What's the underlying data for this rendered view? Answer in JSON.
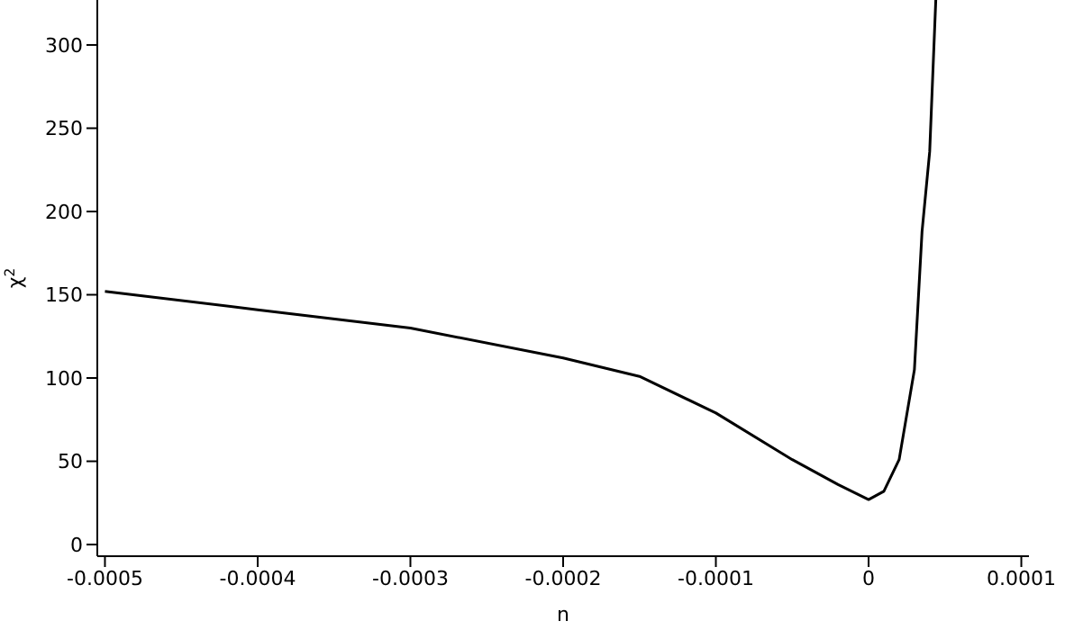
{
  "chart_data": {
    "type": "line",
    "xlabel": "n",
    "ylabel": "χ$^{2}$",
    "xlim": [
      -0.000505,
      0.000105
    ],
    "ylim": [
      -7,
      327
    ],
    "xticks": [
      -0.0005,
      -0.0004,
      -0.0003,
      -0.0002,
      -0.0001,
      0,
      0.0001
    ],
    "yticks": [
      0,
      50,
      100,
      150,
      200,
      250,
      300
    ],
    "grid": false,
    "legend": false,
    "marker": "none",
    "line_style": "solid",
    "series": [
      {
        "color": "#000000",
        "x": [
          -0.0005,
          -0.0004,
          -0.0003,
          -0.0002,
          -0.00015,
          -0.0001,
          -5e-05,
          -2e-05,
          0,
          1e-05,
          2e-05,
          3e-05,
          3.5e-05,
          4e-05,
          4.4e-05
        ],
        "values": [
          152,
          141,
          130,
          112,
          101,
          79,
          51,
          36,
          27,
          32,
          51,
          105,
          188,
          236,
          327
        ]
      }
    ]
  }
}
